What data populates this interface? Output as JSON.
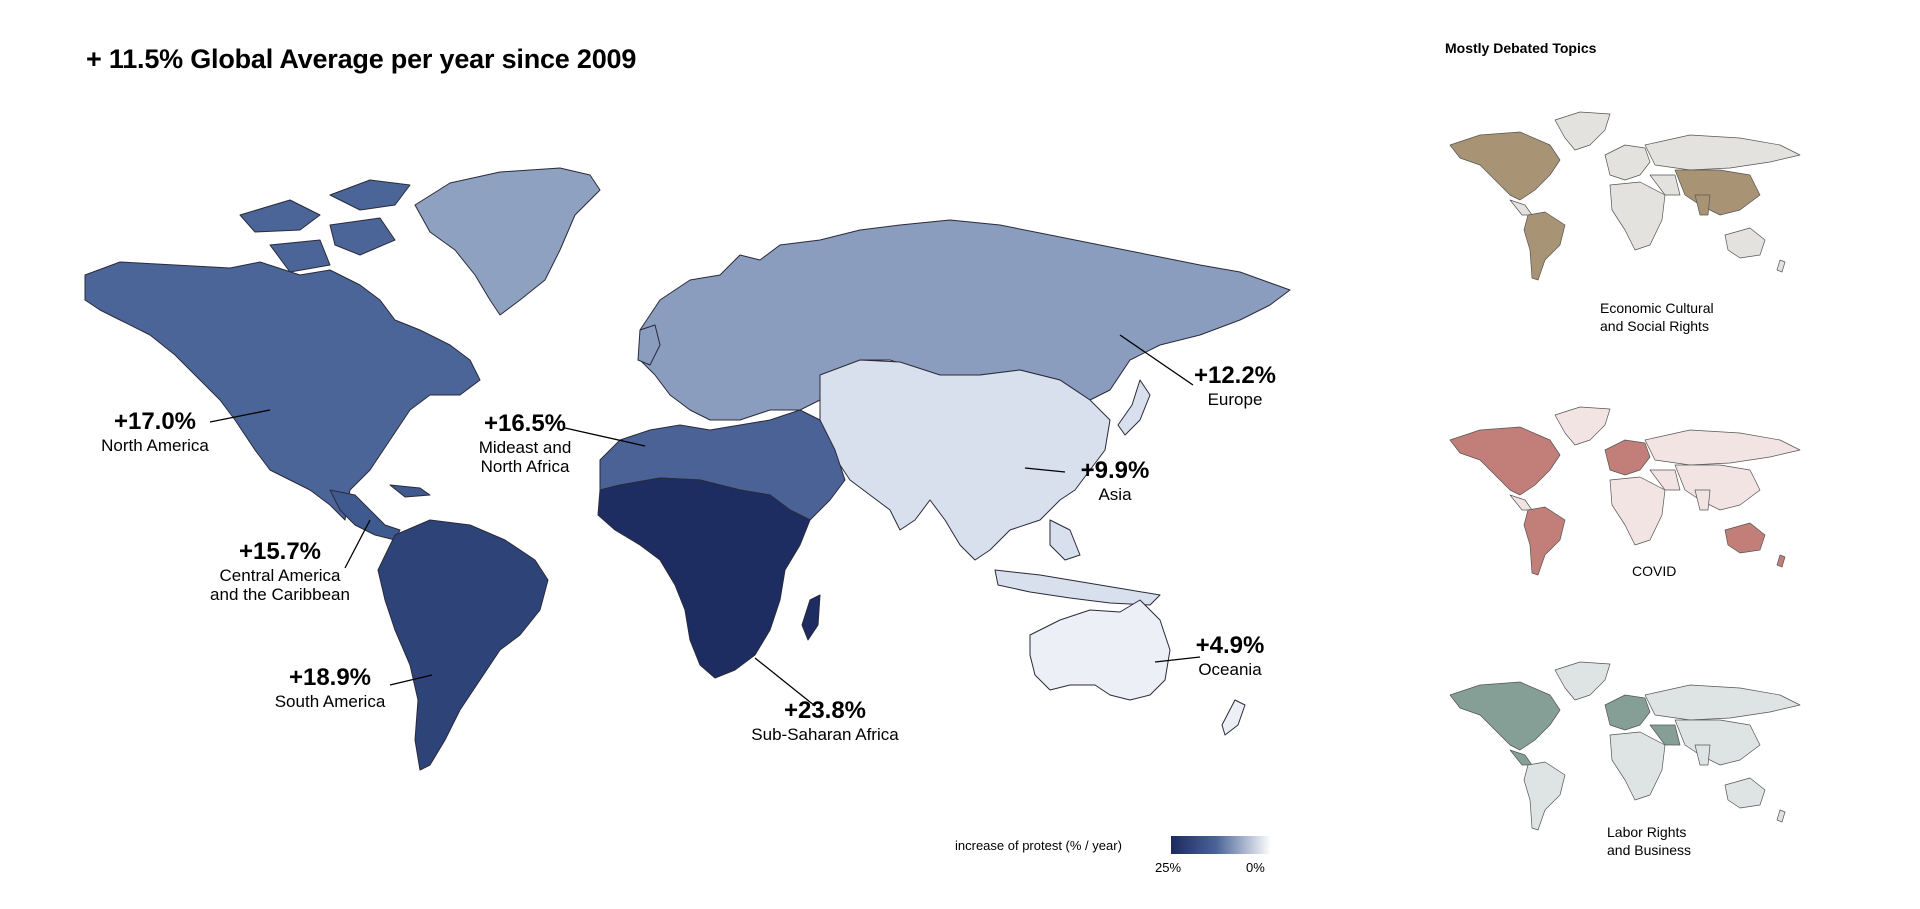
{
  "title": "+ 11.5% Global Average per year since 2009",
  "colors": {
    "north_america": "#4b6598",
    "greenland": "#8fa1c0",
    "central_america": "#3e5a8f",
    "south_america": "#2e4478",
    "europe": "#8a9dbf",
    "mideast": "#4a6296",
    "subsaharan": "#1d2d62",
    "asia": "#d8dfed",
    "oceania": "#eceff6",
    "stroke": "#2a2a3a"
  },
  "regions": [
    {
      "pct": "+17.0%",
      "name": "North America"
    },
    {
      "pct": "+15.7%",
      "name": "Central America\nand the Caribbean"
    },
    {
      "pct": "+18.9%",
      "name": "South America"
    },
    {
      "pct": "+16.5%",
      "name": "Mideast and\nNorth Africa"
    },
    {
      "pct": "+23.8%",
      "name": "Sub-Saharan Africa"
    },
    {
      "pct": "+9.9%",
      "name": "Asia"
    },
    {
      "pct": "+12.2%",
      "name": "Europe"
    },
    {
      "pct": "+4.9%",
      "name": "Oceania"
    }
  ],
  "legend": {
    "title": "increase of protest (% / year)",
    "min_label": "25%",
    "max_label": "0%"
  },
  "side": {
    "title": "Mostly Debated Topics",
    "topics": [
      {
        "caption": "Economic Cultural\nand Social Rights",
        "highlight": "#a89474",
        "base": "#e4e2de"
      },
      {
        "caption": "COVID",
        "highlight": "#c27f79",
        "base": "#f2e4e2"
      },
      {
        "caption": "Labor Rights\nand Business",
        "highlight": "#859f96",
        "base": "#dde4e3"
      }
    ]
  }
}
